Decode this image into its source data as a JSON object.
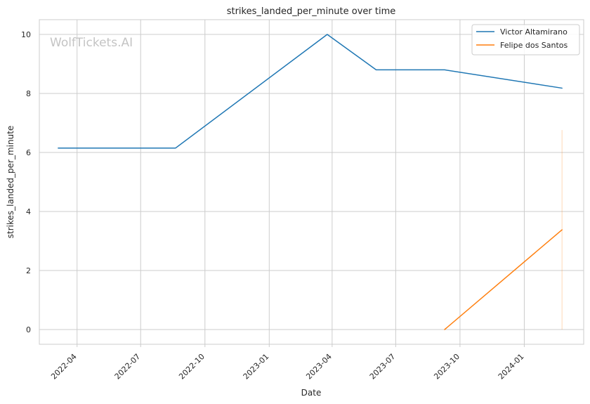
{
  "chart_data": {
    "type": "line",
    "title": "strikes_landed_per_minute over time",
    "xlabel": "Date",
    "ylabel": "strikes_landed_per_minute",
    "x_tick_labels": [
      "2022-04",
      "2022-07",
      "2022-10",
      "2023-01",
      "2023-04",
      "2023-07",
      "2023-10",
      "2024-01"
    ],
    "x_tick_dates": [
      "2022-04-01",
      "2022-07-01",
      "2022-10-01",
      "2023-01-01",
      "2023-04-01",
      "2023-07-01",
      "2023-10-01",
      "2024-01-01"
    ],
    "xlim": [
      "2022-02-06",
      "2024-03-26"
    ],
    "y_ticks": [
      0,
      2,
      4,
      6,
      8,
      10
    ],
    "y_tick_labels": [
      "0",
      "2",
      "4",
      "6",
      "8",
      "10"
    ],
    "ylim": [
      -0.5,
      10.5
    ],
    "grid": true,
    "legend_position": "top-right",
    "watermark": "WolfTickets.AI",
    "series": [
      {
        "name": "Victor Altamirano",
        "color": "#1f77b4",
        "x": [
          "2022-03-05",
          "2022-08-20",
          "2023-03-25",
          "2023-06-03",
          "2023-09-09",
          "2024-02-24"
        ],
        "y": [
          6.15,
          6.15,
          10.0,
          8.8,
          8.8,
          8.18
        ]
      },
      {
        "name": "Felipe dos Santos",
        "color": "#ff7f0e",
        "x": [
          "2023-09-09",
          "2024-02-24"
        ],
        "y": [
          0.0,
          3.38
        ]
      }
    ],
    "annotations": [
      {
        "type": "vertical-line",
        "color": "#ff7f0e",
        "x": "2024-02-24",
        "y_range": [
          0.0,
          6.76
        ]
      }
    ]
  }
}
